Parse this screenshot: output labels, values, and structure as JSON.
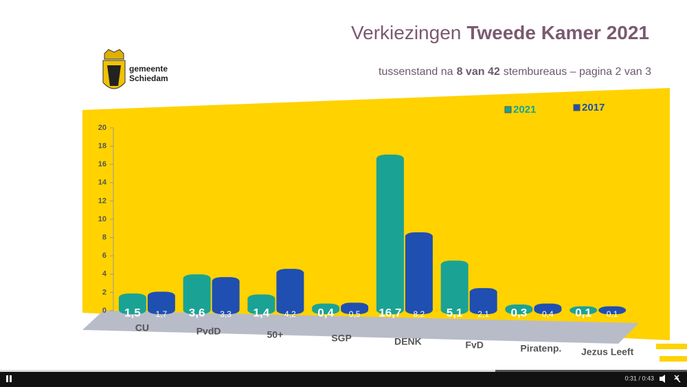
{
  "chart_data": {
    "type": "bar",
    "title": [
      "Verkiezingen",
      "Tweede Kamer 2021"
    ],
    "subtitle": [
      "tussenstand na",
      "8 van 42",
      "stembureaus – pagina 2 van 3"
    ],
    "categories": [
      "CU",
      "PvdD",
      "50+",
      "SGP",
      "DENK",
      "FvD",
      "Piratenp.",
      "Jezus Leeft"
    ],
    "series": [
      {
        "name": "2021",
        "color": "#1aa394",
        "values": [
          1.5,
          3.6,
          1.4,
          0.4,
          16.7,
          5.1,
          0.3,
          0.1
        ],
        "value_labels": [
          "1,5",
          "3,6",
          "1,4",
          "0,4",
          "16,7",
          "5,1",
          "0,3",
          "0,1"
        ]
      },
      {
        "name": "2017",
        "color": "#1f4fb0",
        "values": [
          1.7,
          3.3,
          4.2,
          0.5,
          8.2,
          2.1,
          0.4,
          0.1
        ],
        "value_labels": [
          "1,7",
          "3,3",
          "4,2",
          "0,5",
          "8,2",
          "2,1",
          "0,4",
          "0,1"
        ]
      }
    ],
    "ylim": [
      0,
      20
    ],
    "yticks": [
      0,
      2,
      4,
      6,
      8,
      10,
      12,
      14,
      16,
      18,
      20
    ],
    "grid": false
  },
  "logo": {
    "line1": "gemeente",
    "line2": "Schiedam"
  },
  "player": {
    "time": "0:31 / 0:43"
  }
}
